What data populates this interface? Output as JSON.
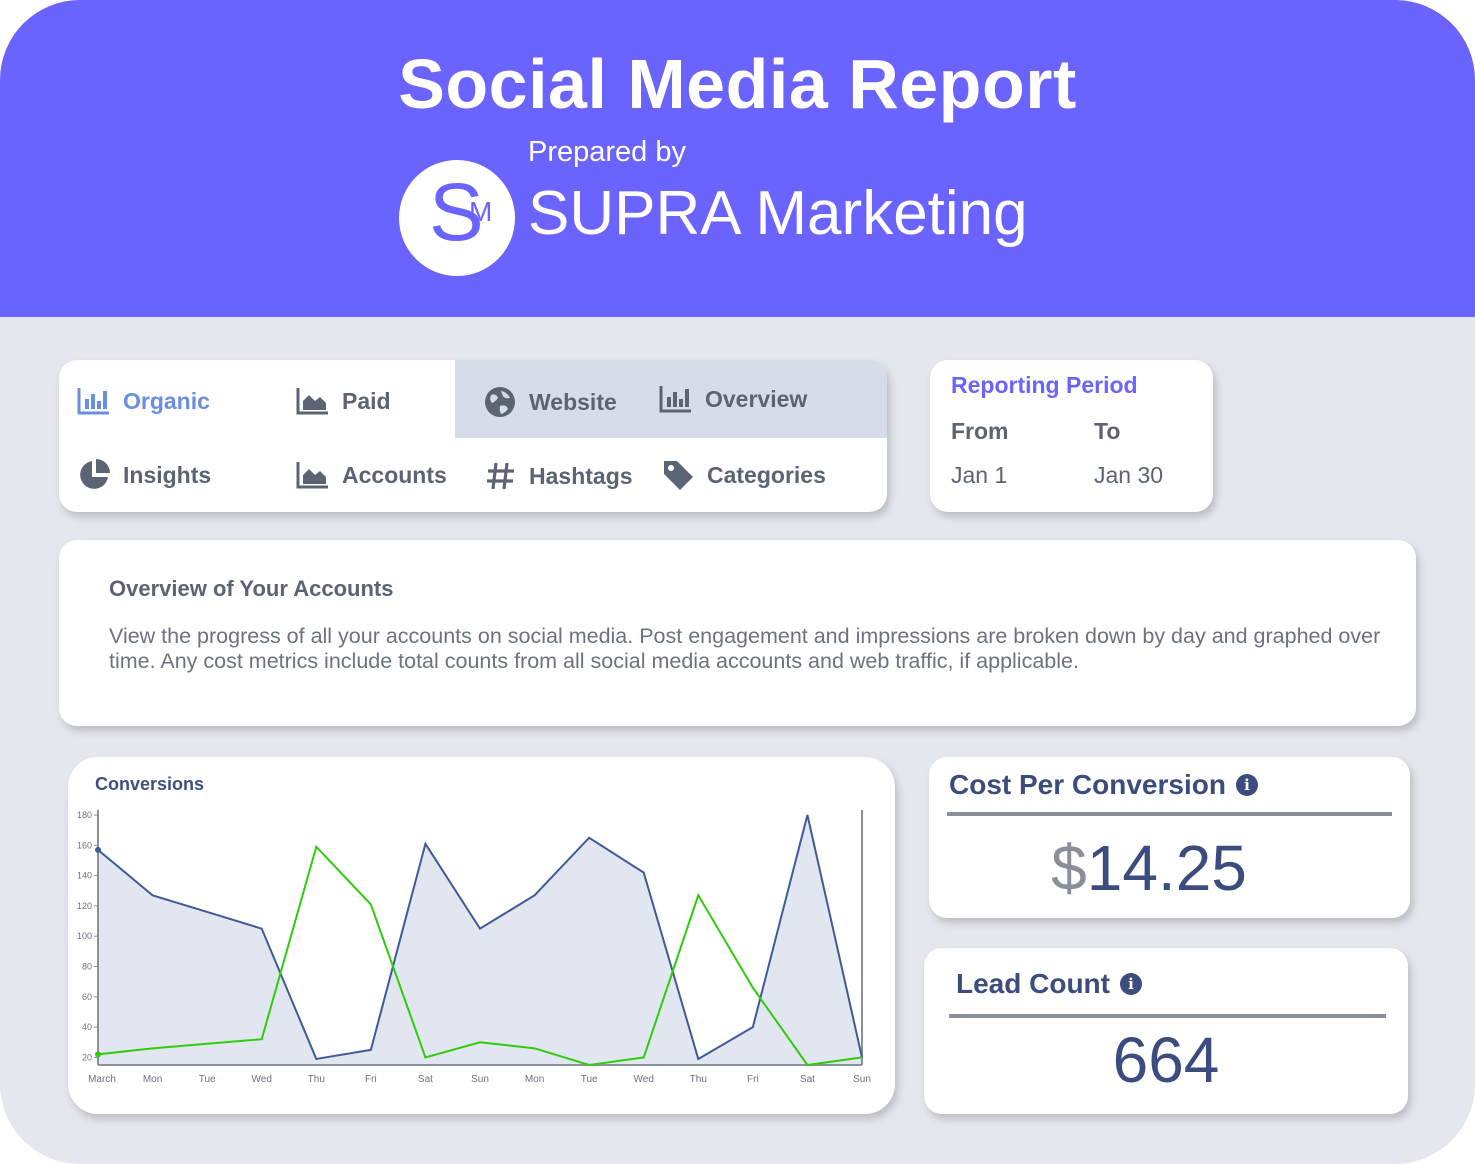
{
  "header": {
    "title": "Social Media Report",
    "prepared_by": "Prepared by",
    "logo_letters": {
      "s": "S",
      "m": "M"
    },
    "company": "SUPRA Marketing",
    "color": "#6b63fe"
  },
  "nav": {
    "items": [
      {
        "label": "Organic",
        "icon": "bar-chart-icon",
        "active": true
      },
      {
        "label": "Paid",
        "icon": "area-chart-icon"
      },
      {
        "label": "Website",
        "icon": "globe-icon"
      },
      {
        "label": "Overview",
        "icon": "bar-chart-icon"
      },
      {
        "label": "Insights",
        "icon": "pie-chart-icon"
      },
      {
        "label": "Accounts",
        "icon": "area-chart-icon"
      },
      {
        "label": "Hashtags",
        "icon": "hashtag-icon"
      },
      {
        "label": "Categories",
        "icon": "tag-icon"
      }
    ]
  },
  "period": {
    "title": "Reporting Period",
    "from_label": "From",
    "to_label": "To",
    "from_value": "Jan 1",
    "to_value": "Jan 30"
  },
  "overview": {
    "title": "Overview of Your Accounts",
    "text": "View the progress of all your accounts on social media. Post engagement and impressions are broken down by day and graphed over time. Any cost metrics include total counts from all social media accounts and web traffic, if applicable."
  },
  "metrics": {
    "cpc": {
      "title": "Cost Per Conversion",
      "currency": "$",
      "value": "14.25"
    },
    "lead": {
      "title": "Lead Count",
      "value": "664"
    }
  },
  "chart_data": {
    "type": "area",
    "title": "Conversions",
    "categories": [
      "March",
      "Mon",
      "Tue",
      "Wed",
      "Thu",
      "Fri",
      "Sat",
      "Sun",
      "Mon",
      "Tue",
      "Wed",
      "Thu",
      "Fri",
      "Sat",
      "Sun"
    ],
    "yticks": [
      20,
      40,
      60,
      80,
      100,
      120,
      140,
      160,
      180
    ],
    "ylim": [
      15,
      180
    ],
    "series": [
      {
        "values": [
          157,
          127,
          116,
          105,
          19,
          25,
          161,
          105,
          127,
          165,
          142,
          19,
          40,
          180,
          20
        ],
        "color": "#3e5a99",
        "fill": "#e2e6f1"
      },
      {
        "values": [
          22,
          26,
          29,
          32,
          159,
          121,
          20,
          30,
          26,
          15,
          20,
          127,
          66,
          15,
          20
        ],
        "color": "#2ecc0a"
      }
    ],
    "grid": false
  }
}
